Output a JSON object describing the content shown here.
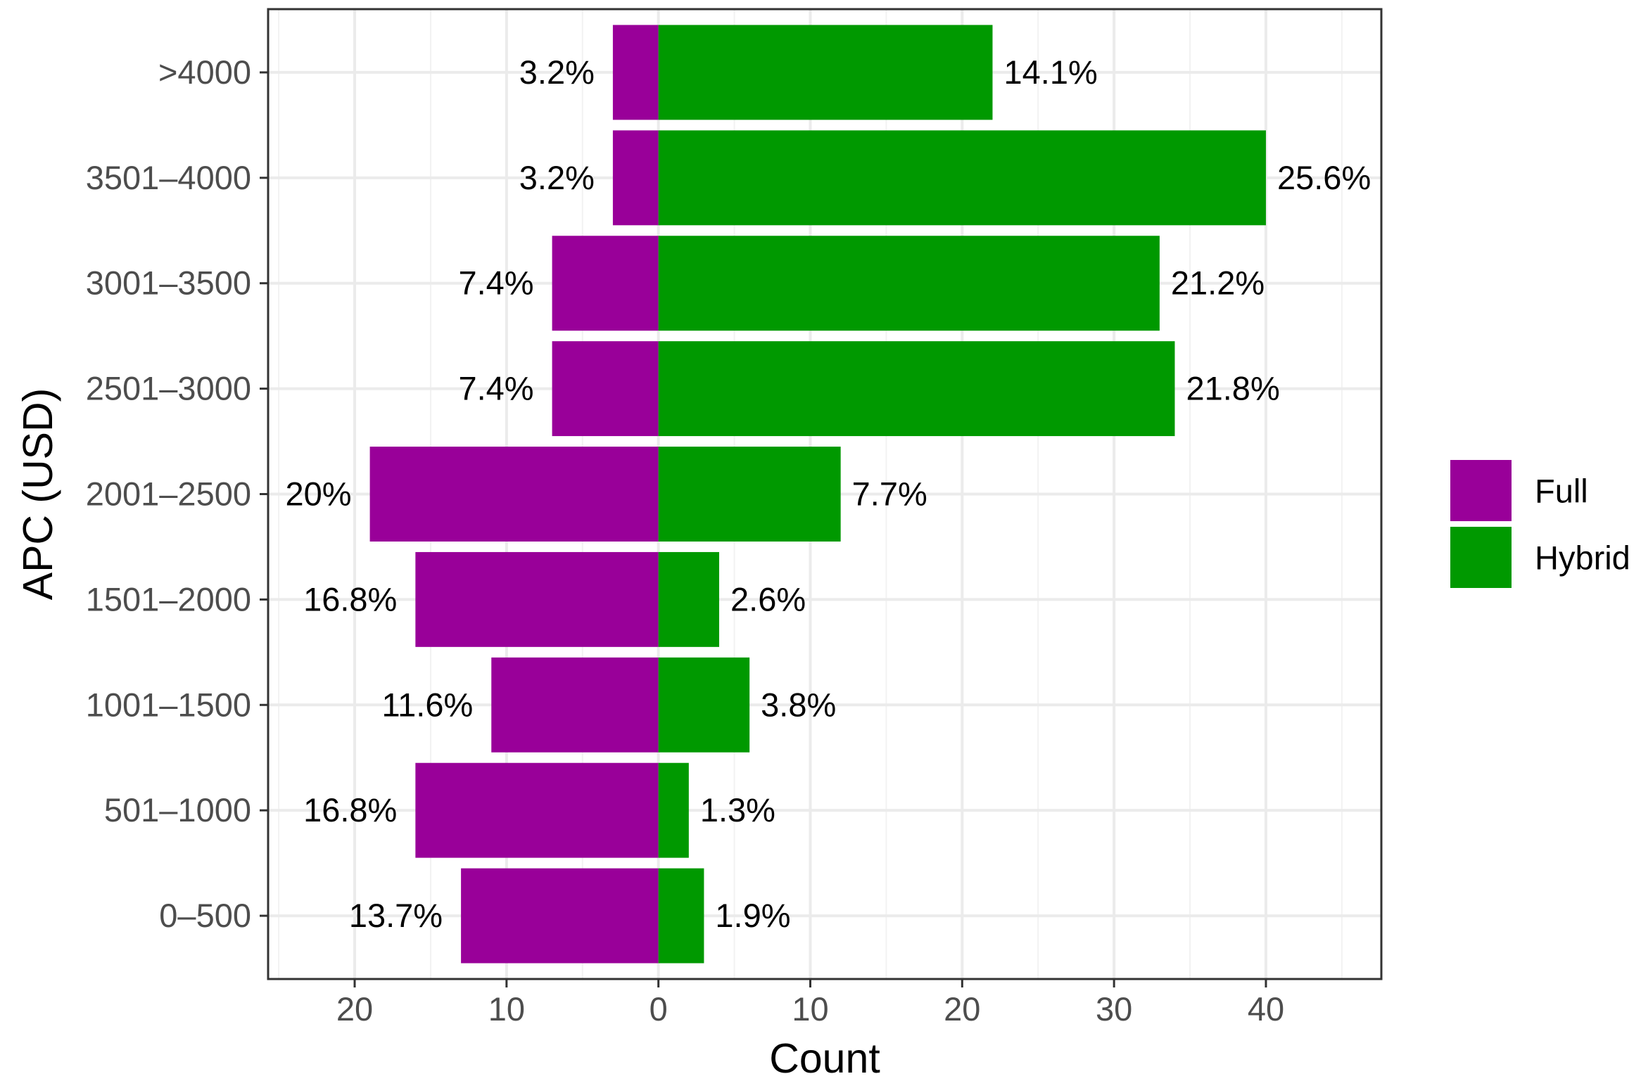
{
  "chart_data": {
    "type": "bar",
    "orientation": "horizontal",
    "layout": "diverging",
    "categories": [
      "0–500",
      "501–1000",
      "1001–1500",
      "1501–2000",
      "2001–2500",
      "2501–3000",
      "3001–3500",
      "3501–4000",
      ">4000"
    ],
    "series": [
      {
        "name": "Full",
        "direction": "negative",
        "color": "#990099",
        "values": [
          13,
          16,
          11,
          16,
          19,
          7,
          7,
          3,
          3
        ],
        "labels": [
          "13.7%",
          "16.8%",
          "11.6%",
          "16.8%",
          "20%",
          "7.4%",
          "7.4%",
          "3.2%",
          "3.2%"
        ]
      },
      {
        "name": "Hybrid",
        "direction": "positive",
        "color": "#009900",
        "values": [
          3,
          2,
          6,
          4,
          12,
          34,
          33,
          40,
          22
        ],
        "labels": [
          "1.9%",
          "1.3%",
          "3.8%",
          "2.6%",
          "7.7%",
          "21.8%",
          "21.2%",
          "25.6%",
          "14.1%"
        ]
      }
    ],
    "xlabel": "Count",
    "ylabel": "APC (USD)",
    "xlim": [
      -25.7,
      47.6
    ],
    "x_ticks": [
      {
        "value": -20,
        "label": "20"
      },
      {
        "value": -10,
        "label": "10"
      },
      {
        "value": 0,
        "label": "0"
      },
      {
        "value": 10,
        "label": "10"
      },
      {
        "value": 20,
        "label": "20"
      },
      {
        "value": 30,
        "label": "30"
      },
      {
        "value": 40,
        "label": "40"
      }
    ],
    "grid": true,
    "legend": {
      "position": "right",
      "entries": [
        "Full",
        "Hybrid"
      ]
    }
  }
}
